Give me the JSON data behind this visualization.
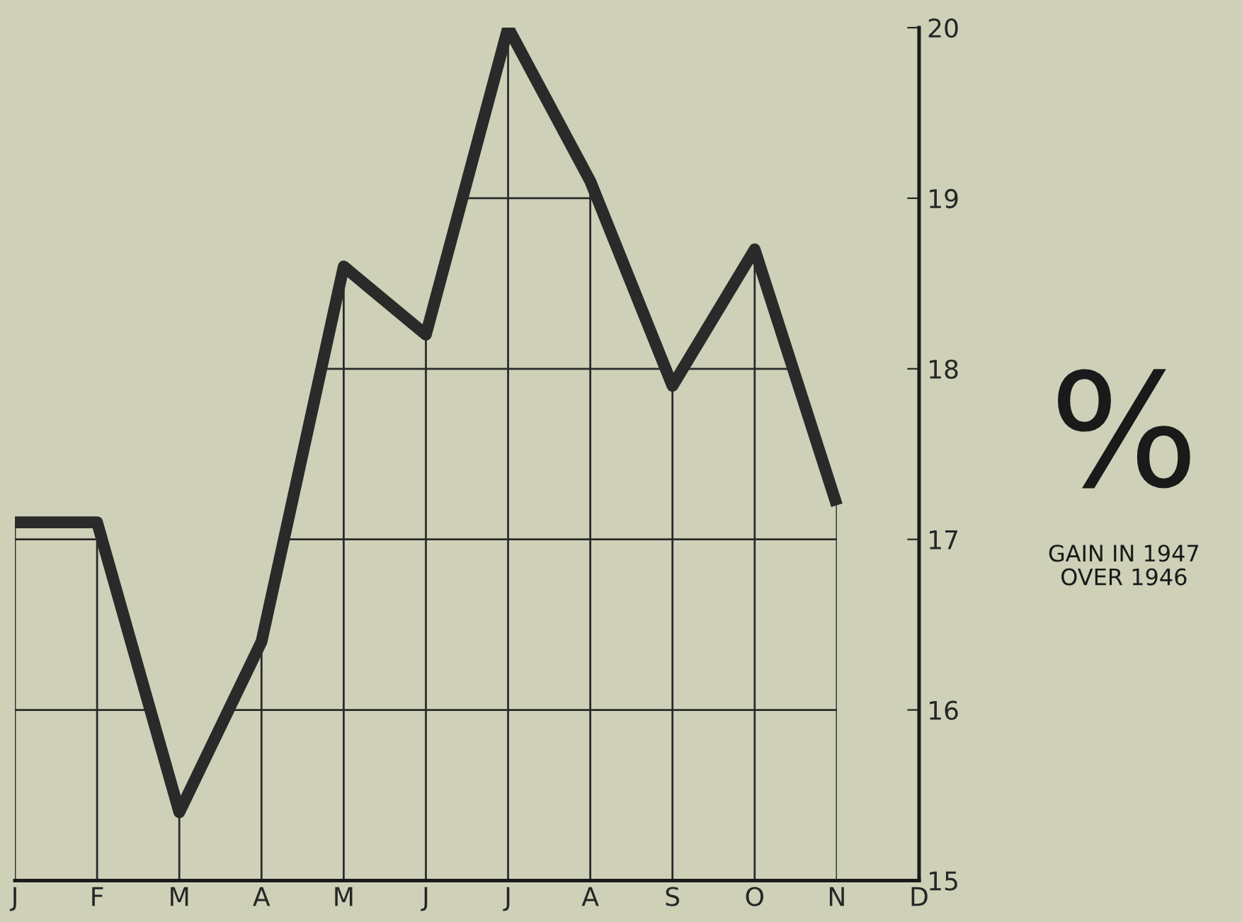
{
  "chart_data": {
    "type": "line",
    "ylabel": "%",
    "annotations": [
      "GAIN IN 1947\nOVER 1946"
    ],
    "categories": [
      "J",
      "F",
      "M",
      "A",
      "M",
      "J",
      "J",
      "A",
      "S",
      "O",
      "N",
      "D"
    ],
    "series": [
      {
        "color": "#2a2a2a",
        "values": [
          17.1,
          17.1,
          15.4,
          16.4,
          18.6,
          18.2,
          20,
          19.1,
          17.9,
          18.7,
          17.2,
          null
        ]
      }
    ],
    "ylim": [
      15,
      20
    ],
    "yticks": [
      15,
      16,
      17,
      18,
      19,
      20
    ],
    "grid": true,
    "marker": "none",
    "line_style": "solid"
  }
}
